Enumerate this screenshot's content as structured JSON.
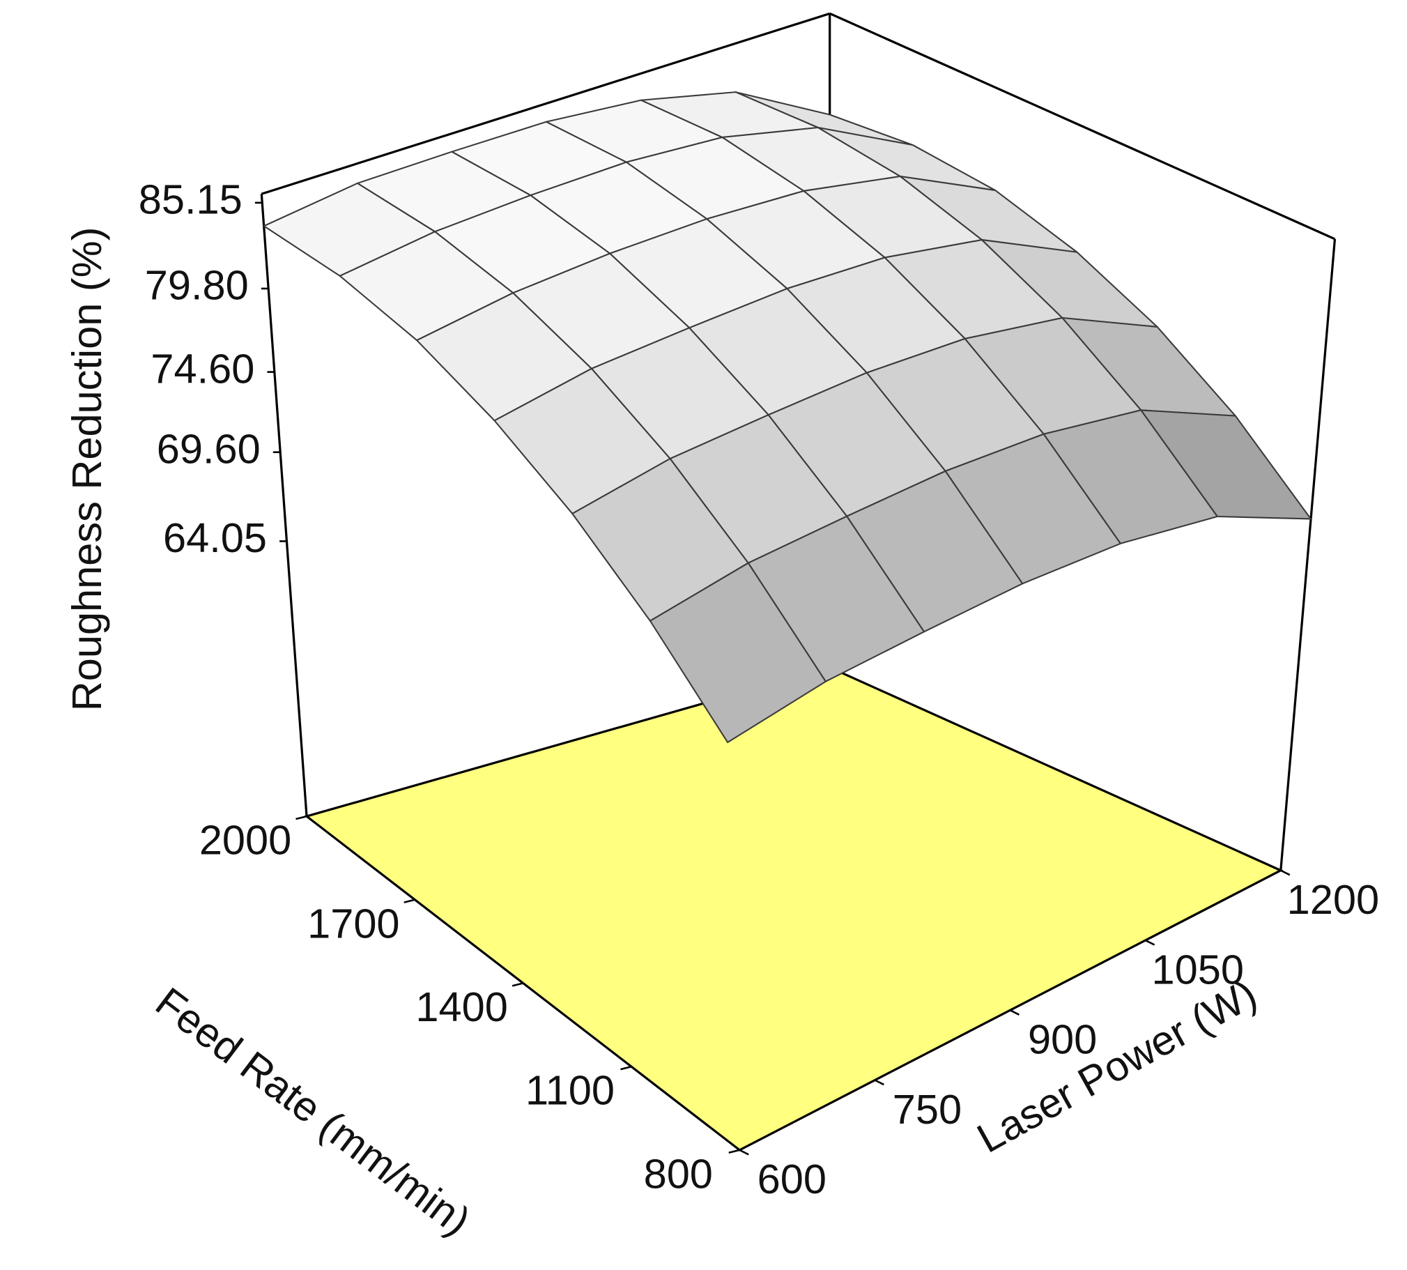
{
  "chart_data": {
    "type": "surface",
    "z_label": "Roughness Reduction (%)",
    "x_label": "Laser Power (W)",
    "y_label": "Feed Rate (mm/min)",
    "x": [
      600,
      700,
      800,
      900,
      1000,
      1100,
      1200
    ],
    "y": [
      800,
      1000,
      1200,
      1400,
      1600,
      1800,
      2000
    ],
    "z": [
      [
        72.5,
        73.3,
        73.4,
        73.4,
        72.9,
        71.6,
        68.5
      ],
      [
        76.6,
        77.4,
        77.5,
        77.5,
        77.0,
        75.7,
        72.6
      ],
      [
        79.8,
        80.6,
        80.7,
        80.7,
        80.2,
        78.9,
        75.8
      ],
      [
        82.1,
        82.9,
        83.0,
        83.0,
        82.5,
        81.2,
        78.1
      ],
      [
        83.6,
        84.3,
        84.5,
        84.4,
        83.9,
        82.6,
        79.6
      ],
      [
        84.1,
        84.8,
        85.0,
        85.0,
        84.5,
        83.1,
        80.1
      ],
      [
        83.7,
        84.5,
        84.6,
        84.6,
        84.1,
        82.8,
        79.7
      ]
    ],
    "xlim": [
      600,
      1200
    ],
    "ylim": [
      800,
      2000
    ],
    "zlim": [
      46.9,
      85.7
    ],
    "xticks": [
      600,
      750,
      900,
      1050,
      1200
    ],
    "yticks": [
      800,
      1100,
      1400,
      1700,
      2000
    ],
    "zticks": [
      64.05,
      {
        "value": 69.6,
        "label": "69.60"
      },
      {
        "value": 74.6,
        "label": "74.60"
      },
      {
        "value": 79.8,
        "label": "79.80"
      },
      85.15
    ],
    "floor_color": "#ffff80",
    "mesh_color": "#3a3a3a"
  }
}
